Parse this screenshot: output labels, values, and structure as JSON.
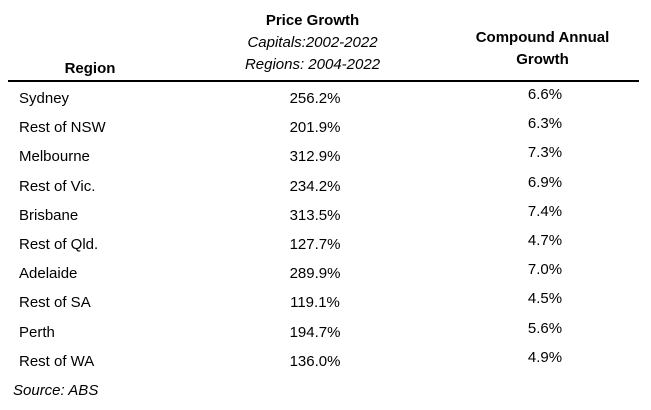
{
  "headers": {
    "region": "Region",
    "price_title": "Price Growth",
    "price_sub1": "Capitals:2002-2022",
    "price_sub2": "Regions: 2004-2022",
    "cagr_line1": "Compound Annual",
    "cagr_line2": "Growth"
  },
  "rows": [
    {
      "region": "Sydney",
      "price_growth": "256.2%",
      "cagr": "6.6%"
    },
    {
      "region": "Rest of NSW",
      "price_growth": "201.9%",
      "cagr": "6.3%"
    },
    {
      "region": "Melbourne",
      "price_growth": "312.9%",
      "cagr": "7.3%"
    },
    {
      "region": "Rest of Vic.",
      "price_growth": "234.2%",
      "cagr": "6.9%"
    },
    {
      "region": "Brisbane",
      "price_growth": "313.5%",
      "cagr": "7.4%"
    },
    {
      "region": "Rest of Qld.",
      "price_growth": "127.7%",
      "cagr": "4.7%"
    },
    {
      "region": "Adelaide",
      "price_growth": "289.9%",
      "cagr": "7.0%"
    },
    {
      "region": "Rest of SA",
      "price_growth": "119.1%",
      "cagr": "4.5%"
    },
    {
      "region": "Perth",
      "price_growth": "194.7%",
      "cagr": "5.6%"
    },
    {
      "region": "Rest of WA",
      "price_growth": "136.0%",
      "cagr": "4.9%"
    }
  ],
  "source": "Source: ABS"
}
